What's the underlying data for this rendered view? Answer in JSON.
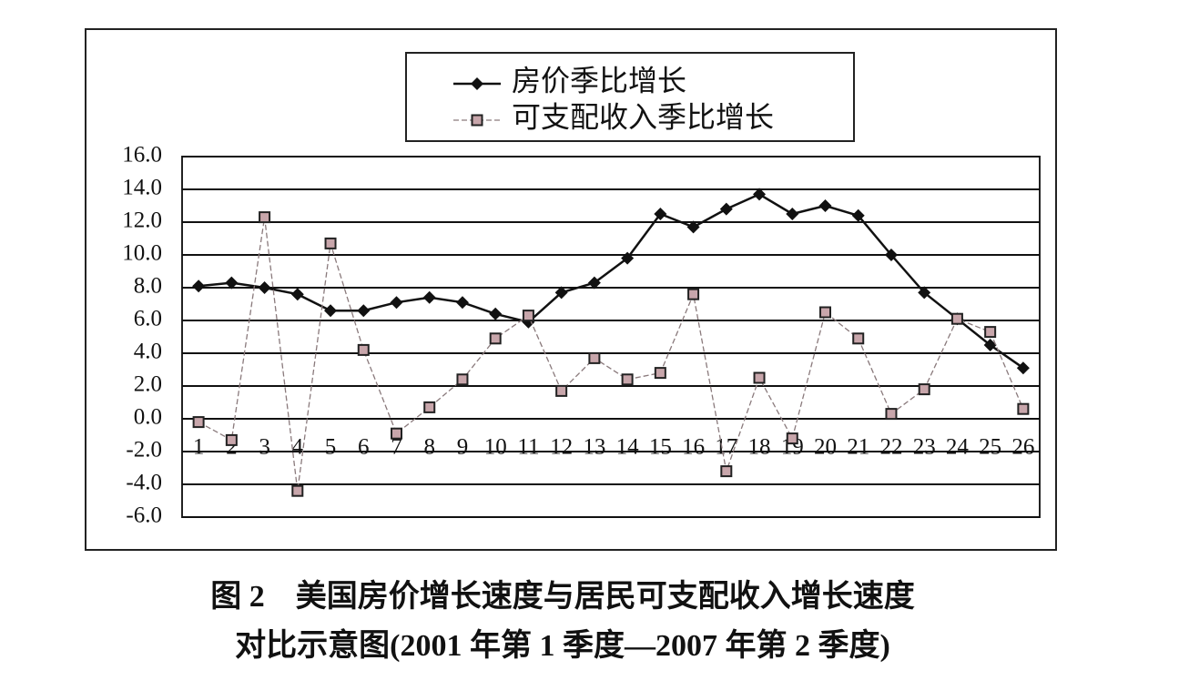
{
  "chart_data": {
    "type": "line",
    "caption": [
      "图 2　美国房价增长速度与居民可支配收入增长速度",
      "对比示意图(2001 年第 1 季度—2007 年第 2 季度)"
    ],
    "categories": [
      "1",
      "2",
      "3",
      "4",
      "5",
      "6",
      "7",
      "8",
      "9",
      "10",
      "11",
      "12",
      "13",
      "14",
      "15",
      "16",
      "17",
      "18",
      "19",
      "20",
      "21",
      "22",
      "23",
      "24",
      "25",
      "26"
    ],
    "series": [
      {
        "name": "房价季比增长",
        "color": "#111111",
        "marker": "diamond",
        "values": [
          8.1,
          8.3,
          8.0,
          7.6,
          6.6,
          6.6,
          7.1,
          7.4,
          7.1,
          6.4,
          5.9,
          7.7,
          8.3,
          9.8,
          12.5,
          11.7,
          12.8,
          13.7,
          12.5,
          13.0,
          12.4,
          10.0,
          7.7,
          6.1,
          4.5,
          3.1
        ]
      },
      {
        "name": "可支配收入季比增长",
        "color": "#8a7a7c",
        "marker": "square",
        "values": [
          -0.2,
          -1.3,
          12.3,
          -4.4,
          10.7,
          4.2,
          -0.9,
          0.7,
          2.4,
          4.9,
          6.3,
          1.7,
          3.7,
          2.4,
          2.8,
          7.6,
          -3.2,
          2.5,
          -1.2,
          6.5,
          4.9,
          0.3,
          1.8,
          6.1,
          5.3,
          0.6
        ]
      }
    ],
    "ylim": [
      -6,
      16
    ],
    "yticks": [
      {
        "value": -6,
        "label": "-6.0"
      },
      {
        "value": -4,
        "label": "-4.0"
      },
      {
        "value": -2,
        "label": "-2.0"
      },
      {
        "value": 0,
        "label": "0.0"
      },
      {
        "value": 2,
        "label": "2.0"
      },
      {
        "value": 4,
        "label": "4.0"
      },
      {
        "value": 6,
        "label": "6.0"
      },
      {
        "value": 8,
        "label": "8.0"
      },
      {
        "value": 10,
        "label": "10.0"
      },
      {
        "value": 12,
        "label": "12.0"
      },
      {
        "value": 14,
        "label": "14.0"
      },
      {
        "value": 16,
        "label": "16.0"
      }
    ],
    "grid": true
  }
}
